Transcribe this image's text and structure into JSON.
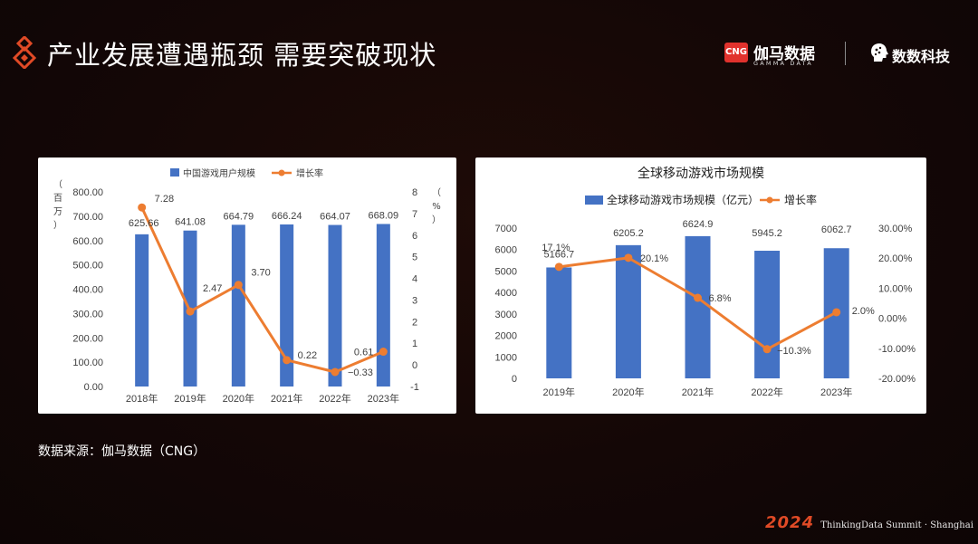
{
  "header": {
    "title": "产业发展遭遇瓶颈  需要突破现状",
    "brand_primary": "伽马数据",
    "brand_primary_badge": "CNG",
    "brand_primary_sub": "GAMMA DATA",
    "brand_secondary": "数数科技"
  },
  "source_note": "数据来源：伽马数据（CNG）",
  "footer": {
    "year": "2024",
    "text": "ThinkingData  Summit · Shanghai"
  },
  "colors": {
    "bar": "#4472c4",
    "line": "#ed7d31",
    "accent": "#e04a26",
    "background": "#140706"
  },
  "chart_data": [
    {
      "type": "bar",
      "title": "",
      "y_axis_left_label": [
        "（",
        "百",
        "万",
        "）"
      ],
      "y_axis_right_label": [
        "（",
        "%",
        "）"
      ],
      "categories": [
        "2018年",
        "2019年",
        "2020年",
        "2021年",
        "2022年",
        "2023年"
      ],
      "ylim": [
        0,
        800
      ],
      "y2lim": [
        -1,
        8
      ],
      "yticks": [
        "0.00",
        "100.00",
        "200.00",
        "300.00",
        "400.00",
        "500.00",
        "600.00",
        "700.00",
        "800.00"
      ],
      "y2ticks": [
        "-1",
        "0",
        "1",
        "2",
        "3",
        "4",
        "5",
        "6",
        "7",
        "8"
      ],
      "grid": false,
      "legend": "top",
      "series": [
        {
          "name": "中国游戏用户规模",
          "kind": "bar",
          "axis": "left",
          "values": [
            625.66,
            641.08,
            664.79,
            666.24,
            664.07,
            668.09
          ],
          "labels": [
            "625.66",
            "641.08",
            "664.79",
            "666.24",
            "664.07",
            "668.09"
          ]
        },
        {
          "name": "增长率",
          "kind": "line",
          "axis": "right",
          "values": [
            7.28,
            2.47,
            3.7,
            0.22,
            -0.33,
            0.61
          ],
          "labels": [
            "7.28",
            "2.47",
            "3.70",
            "0.22",
            "−0.33",
            "0.61"
          ]
        }
      ]
    },
    {
      "type": "bar",
      "title": "全球移动游戏市场规模",
      "categories": [
        "2019年",
        "2020年",
        "2021年",
        "2022年",
        "2023年"
      ],
      "ylim": [
        0,
        7000
      ],
      "y2lim": [
        -20,
        30
      ],
      "yticks": [
        "0",
        "1000",
        "2000",
        "3000",
        "4000",
        "5000",
        "6000",
        "7000"
      ],
      "y2ticks": [
        "-20.00%",
        "-10.00%",
        "0.00%",
        "10.00%",
        "20.00%",
        "30.00%"
      ],
      "grid": false,
      "legend": "top",
      "series": [
        {
          "name": "全球移动游戏市场规模（亿元）",
          "kind": "bar",
          "axis": "left",
          "values": [
            5166.7,
            6205.2,
            6624.9,
            5945.2,
            6062.7
          ],
          "labels": [
            "5166.7",
            "6205.2",
            "6624.9",
            "5945.2",
            "6062.7"
          ]
        },
        {
          "name": "增长率",
          "kind": "line",
          "axis": "right",
          "values": [
            17.1,
            20.1,
            6.8,
            -10.3,
            2.0
          ],
          "labels": [
            "17.1%",
            "20.1%",
            "6.8%",
            "−10.3%",
            "2.0%"
          ]
        }
      ]
    }
  ]
}
